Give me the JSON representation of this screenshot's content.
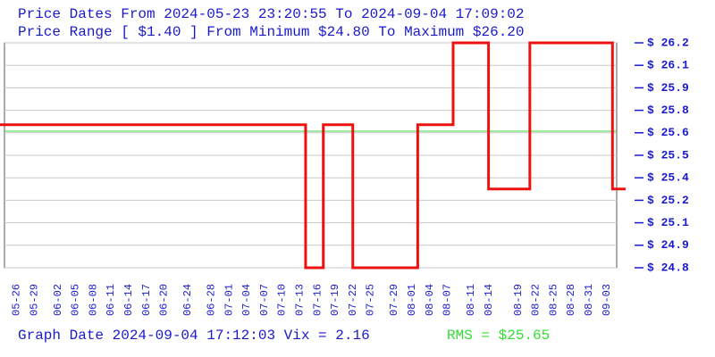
{
  "chart_data": {
    "type": "step",
    "title": "Price Dates From 2024-05-23 23:20:55 To 2024-09-04 17:09:02",
    "subtitle": "Price Range [ $1.40 ] From Minimum $24.80 To Maximum $26.20",
    "footer": "Graph Date 2024-09-04 17:12:03 Vix = 2.16",
    "rms_label": "RMS = $25.65",
    "rms": 25.65,
    "rms_color": "#33dd33",
    "xlim": [
      "2024-05-23 23:20:55",
      "2024-09-04 17:09:02"
    ],
    "xticks": [
      {
        "value": "2024-05-26",
        "label": "05-26"
      },
      {
        "value": "2024-05-29",
        "label": "05-29"
      },
      {
        "value": "2024-06-02",
        "label": "06-02"
      },
      {
        "value": "2024-06-05",
        "label": "06-05"
      },
      {
        "value": "2024-06-08",
        "label": "06-08"
      },
      {
        "value": "2024-06-11",
        "label": "06-11"
      },
      {
        "value": "2024-06-14",
        "label": "06-14"
      },
      {
        "value": "2024-06-17",
        "label": "06-17"
      },
      {
        "value": "2024-06-20",
        "label": "06-20"
      },
      {
        "value": "2024-06-24",
        "label": "06-24"
      },
      {
        "value": "2024-06-28",
        "label": "06-28"
      },
      {
        "value": "2024-07-01",
        "label": "07-01"
      },
      {
        "value": "2024-07-04",
        "label": "07-04"
      },
      {
        "value": "2024-07-07",
        "label": "07-07"
      },
      {
        "value": "2024-07-10",
        "label": "07-10"
      },
      {
        "value": "2024-07-13",
        "label": "07-13"
      },
      {
        "value": "2024-07-16",
        "label": "07-16"
      },
      {
        "value": "2024-07-19",
        "label": "07-19"
      },
      {
        "value": "2024-07-22",
        "label": "07-22"
      },
      {
        "value": "2024-07-25",
        "label": "07-25"
      },
      {
        "value": "2024-07-29",
        "label": "07-29"
      },
      {
        "value": "2024-08-01",
        "label": "08-01"
      },
      {
        "value": "2024-08-04",
        "label": "08-04"
      },
      {
        "value": "2024-08-07",
        "label": "08-07"
      },
      {
        "value": "2024-08-11",
        "label": "08-11"
      },
      {
        "value": "2024-08-14",
        "label": "08-14"
      },
      {
        "value": "2024-08-19",
        "label": "08-19"
      },
      {
        "value": "2024-08-22",
        "label": "08-22"
      },
      {
        "value": "2024-08-25",
        "label": "08-25"
      },
      {
        "value": "2024-08-28",
        "label": "08-28"
      },
      {
        "value": "2024-08-31",
        "label": "08-31"
      },
      {
        "value": "2024-09-03",
        "label": "09-03"
      }
    ],
    "ylim": [
      24.8,
      26.2
    ],
    "yticks": [
      {
        "value": 24.8,
        "label": "$ 24.8"
      },
      {
        "value": 24.94,
        "label": "$ 24.9"
      },
      {
        "value": 25.08,
        "label": "$ 25.1"
      },
      {
        "value": 25.22,
        "label": "$ 25.2"
      },
      {
        "value": 25.36,
        "label": "$ 25.4"
      },
      {
        "value": 25.5,
        "label": "$ 25.5"
      },
      {
        "value": 25.64,
        "label": "$ 25.6"
      },
      {
        "value": 25.78,
        "label": "$ 25.8"
      },
      {
        "value": 25.92,
        "label": "$ 25.9"
      },
      {
        "value": 26.06,
        "label": "$ 26.1"
      },
      {
        "value": 26.2,
        "label": "$ 26.2"
      }
    ],
    "grid": true,
    "x": [
      "2024-05-23",
      "2024-07-14",
      "2024-07-17",
      "2024-07-22",
      "2024-08-02",
      "2024-08-08",
      "2024-08-14",
      "2024-08-21",
      "2024-09-04"
    ],
    "values": [
      25.69,
      24.8,
      25.69,
      24.8,
      25.69,
      26.2,
      25.29,
      26.2,
      25.29
    ],
    "color": "#ee1111"
  }
}
